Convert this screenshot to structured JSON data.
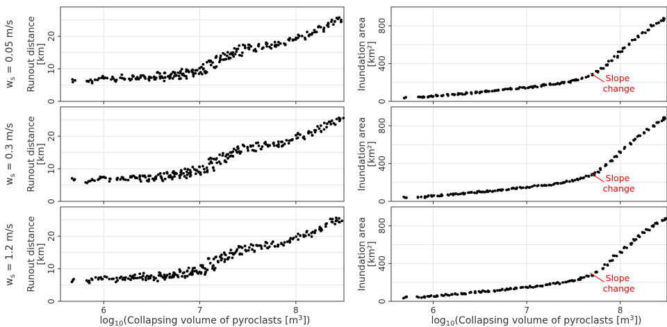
{
  "chart_data": [
    {
      "type": "scatter",
      "row_label": "w<sub>s</sub> = 0.05 m/s",
      "row_label_text": "ws = 0.05 m/s",
      "ylabel_line1": "Runout distance",
      "ylabel_line2": "[km]",
      "xlabel": "",
      "xlim": [
        5.55,
        8.5
      ],
      "ylim": [
        0,
        29
      ],
      "xticks": [
        "6",
        "7",
        "8"
      ],
      "yticks": [
        "0",
        "10",
        "20"
      ],
      "grid": true,
      "variant": "runout"
    },
    {
      "type": "scatter",
      "row_label": "",
      "ylabel_line1": "Inundation area",
      "ylabel_line2": "[km²]",
      "xlabel": "",
      "xlim": [
        5.55,
        8.5
      ],
      "ylim": [
        0,
        1000
      ],
      "xticks": [
        "6",
        "7",
        "8"
      ],
      "yticks": [
        "0",
        "400",
        "800"
      ],
      "grid": true,
      "variant": "area",
      "annotation": {
        "line1": "Slope",
        "line2": "change",
        "x": 7.68,
        "y": 300
      }
    },
    {
      "type": "scatter",
      "row_label_text": "ws = 0.3 m/s",
      "ylabel_line1": "Runout distance",
      "ylabel_line2": "[km]",
      "xlabel": "",
      "xlim": [
        5.55,
        8.5
      ],
      "ylim": [
        0,
        29
      ],
      "xticks": [
        "6",
        "7",
        "8"
      ],
      "yticks": [
        "0",
        "10",
        "20"
      ],
      "grid": true,
      "variant": "runout"
    },
    {
      "type": "scatter",
      "ylabel_line1": "Inundation area",
      "ylabel_line2": "[km²]",
      "xlabel": "",
      "xlim": [
        5.55,
        8.5
      ],
      "ylim": [
        0,
        1000
      ],
      "xticks": [
        "6",
        "7",
        "8"
      ],
      "yticks": [
        "0",
        "400",
        "800"
      ],
      "grid": true,
      "variant": "area",
      "annotation": {
        "line1": "Slope",
        "line2": "change",
        "x": 7.68,
        "y": 300
      }
    },
    {
      "type": "scatter",
      "row_label_text": "ws = 1.2 m/s",
      "ylabel_line1": "Runout distance",
      "ylabel_line2": "[km]",
      "xlabel": "log10(Collapsing volume of pyroclasts [m3])",
      "xlim": [
        5.55,
        8.5
      ],
      "ylim": [
        0,
        29
      ],
      "xticks": [
        "6",
        "7",
        "8"
      ],
      "yticks": [
        "0",
        "10",
        "20"
      ],
      "grid": true,
      "variant": "runout"
    },
    {
      "type": "scatter",
      "ylabel_line1": "Inundation area",
      "ylabel_line2": "[km²]",
      "xlabel": "log10(Collapsing volume of pyroclasts [m3])",
      "xlim": [
        5.55,
        8.5
      ],
      "ylim": [
        0,
        1000
      ],
      "xticks": [
        "6",
        "7",
        "8"
      ],
      "yticks": [
        "0",
        "400",
        "800"
      ],
      "grid": true,
      "variant": "area",
      "annotation": {
        "line1": "Slope",
        "line2": "change",
        "x": 7.68,
        "y": 300
      }
    }
  ],
  "series_points": {
    "runout": [
      [
        5.69,
        6.4
      ],
      [
        5.83,
        6.0
      ],
      [
        5.87,
        6.3
      ],
      [
        5.93,
        6.6
      ],
      [
        5.97,
        7.1
      ],
      [
        6.02,
        7.4
      ],
      [
        6.08,
        6.9
      ],
      [
        6.13,
        6.6
      ],
      [
        6.18,
        7.5
      ],
      [
        6.22,
        7.1
      ],
      [
        6.27,
        6.9
      ],
      [
        6.3,
        7.6
      ],
      [
        6.33,
        7.2
      ],
      [
        6.37,
        6.9
      ],
      [
        6.4,
        8.0
      ],
      [
        6.43,
        7.3
      ],
      [
        6.46,
        6.8
      ],
      [
        6.49,
        7.7
      ],
      [
        6.52,
        7.2
      ],
      [
        6.55,
        6.9
      ],
      [
        6.58,
        8.2
      ],
      [
        6.6,
        7.5
      ],
      [
        6.63,
        7.0
      ],
      [
        6.65,
        8.4
      ],
      [
        6.68,
        7.7
      ],
      [
        6.7,
        7.2
      ],
      [
        6.73,
        8.8
      ],
      [
        6.75,
        8.0
      ],
      [
        6.78,
        7.5
      ],
      [
        6.8,
        9.2
      ],
      [
        6.82,
        8.4
      ],
      [
        6.85,
        7.8
      ],
      [
        6.87,
        9.6
      ],
      [
        6.9,
        8.8
      ],
      [
        6.92,
        8.1
      ],
      [
        6.94,
        10.0
      ],
      [
        6.97,
        9.2
      ],
      [
        7.0,
        8.5
      ],
      [
        7.02,
        10.6
      ],
      [
        7.05,
        9.7
      ],
      [
        7.07,
        9.0
      ],
      [
        7.1,
        12.8
      ],
      [
        7.12,
        11.5
      ],
      [
        7.15,
        10.2
      ],
      [
        7.17,
        13.5
      ],
      [
        7.2,
        12.0
      ],
      [
        7.22,
        14.0
      ],
      [
        7.25,
        12.5
      ],
      [
        7.27,
        14.6
      ],
      [
        7.3,
        13.2
      ],
      [
        7.32,
        15.0
      ],
      [
        7.35,
        14.0
      ],
      [
        7.37,
        15.6
      ],
      [
        7.4,
        16.5
      ],
      [
        7.43,
        14.8
      ],
      [
        7.46,
        17.0
      ],
      [
        7.5,
        16.0
      ],
      [
        7.53,
        17.2
      ],
      [
        7.57,
        15.8
      ],
      [
        7.6,
        17.3
      ],
      [
        7.64,
        16.5
      ],
      [
        7.68,
        17.4
      ],
      [
        7.72,
        17.0
      ],
      [
        7.76,
        17.6
      ],
      [
        7.8,
        17.2
      ],
      [
        7.84,
        18.0
      ],
      [
        7.88,
        17.5
      ],
      [
        7.92,
        18.6
      ],
      [
        7.96,
        19.0
      ],
      [
        8.0,
        19.6
      ],
      [
        8.04,
        20.2
      ],
      [
        8.08,
        19.8
      ],
      [
        8.12,
        21.0
      ],
      [
        8.16,
        20.6
      ],
      [
        8.2,
        21.6
      ],
      [
        8.24,
        22.5
      ],
      [
        8.28,
        21.8
      ],
      [
        8.32,
        23.5
      ],
      [
        8.36,
        24.5
      ],
      [
        8.4,
        24.0
      ],
      [
        8.44,
        25.5
      ],
      [
        8.47,
        24.8
      ]
    ],
    "area": [
      [
        5.7,
        40
      ],
      [
        5.85,
        45
      ],
      [
        5.9,
        48
      ],
      [
        5.95,
        52
      ],
      [
        6.0,
        55
      ],
      [
        6.05,
        60
      ],
      [
        6.1,
        63
      ],
      [
        6.15,
        68
      ],
      [
        6.2,
        72
      ],
      [
        6.25,
        76
      ],
      [
        6.3,
        80
      ],
      [
        6.35,
        85
      ],
      [
        6.4,
        90
      ],
      [
        6.45,
        95
      ],
      [
        6.5,
        98
      ],
      [
        6.55,
        103
      ],
      [
        6.6,
        108
      ],
      [
        6.65,
        112
      ],
      [
        6.7,
        118
      ],
      [
        6.75,
        122
      ],
      [
        6.8,
        128
      ],
      [
        6.85,
        133
      ],
      [
        6.9,
        138
      ],
      [
        6.95,
        143
      ],
      [
        7.0,
        148
      ],
      [
        7.05,
        154
      ],
      [
        7.1,
        160
      ],
      [
        7.15,
        166
      ],
      [
        7.2,
        172
      ],
      [
        7.25,
        178
      ],
      [
        7.3,
        185
      ],
      [
        7.35,
        192
      ],
      [
        7.4,
        200
      ],
      [
        7.45,
        210
      ],
      [
        7.5,
        220
      ],
      [
        7.55,
        232
      ],
      [
        7.6,
        245
      ],
      [
        7.65,
        260
      ],
      [
        7.7,
        280
      ],
      [
        7.75,
        310
      ],
      [
        7.8,
        345
      ],
      [
        7.85,
        385
      ],
      [
        7.9,
        430
      ],
      [
        7.95,
        475
      ],
      [
        8.0,
        520
      ],
      [
        8.05,
        565
      ],
      [
        8.1,
        610
      ],
      [
        8.15,
        650
      ],
      [
        8.2,
        690
      ],
      [
        8.25,
        725
      ],
      [
        8.3,
        760
      ],
      [
        8.35,
        800
      ],
      [
        8.4,
        830
      ],
      [
        8.45,
        860
      ],
      [
        8.48,
        880
      ]
    ]
  },
  "labels": {
    "row1": "ws = 0.05 m/s",
    "row2": "ws = 0.3 m/s",
    "row3": "ws = 1.2 m/s",
    "runout_y1": "Runout distance",
    "runout_y2": "[km]",
    "area_y1": "Inundation area",
    "area_y2": "[km2]",
    "xlabel": "log10(Collapsing volume of pyroclasts [m3])",
    "slope1": "Slope",
    "slope2": "change"
  }
}
